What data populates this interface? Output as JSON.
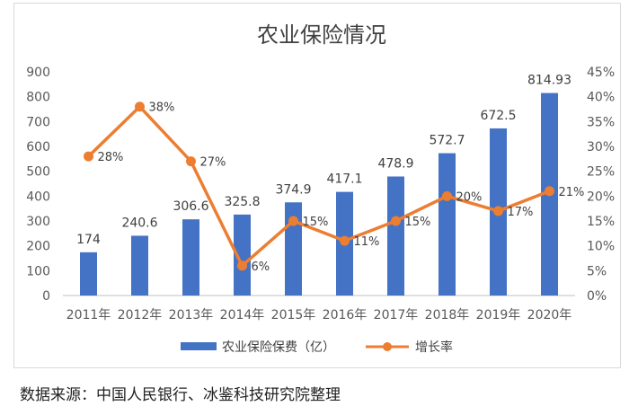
{
  "chart_data": {
    "type": "bar",
    "title": "农业保险情况",
    "categories": [
      "2011年",
      "2012年",
      "2013年",
      "2014年",
      "2015年",
      "2016年",
      "2017年",
      "2018年",
      "2019年",
      "2020年"
    ],
    "series": [
      {
        "name": "农业保险保费（亿）",
        "type": "bar",
        "axis": "left",
        "color": "#4472c4",
        "values": [
          174,
          240.6,
          306.6,
          325.8,
          374.9,
          417.1,
          478.9,
          572.7,
          672.5,
          814.93
        ],
        "labels": [
          "174",
          "240.6",
          "306.6",
          "325.8",
          "374.9",
          "417.1",
          "478.9",
          "572.7",
          "672.5",
          "814.93"
        ]
      },
      {
        "name": "增长率",
        "type": "line",
        "axis": "right",
        "color": "#ed7d31",
        "values": [
          28,
          38,
          27,
          6,
          15,
          11,
          15,
          20,
          17,
          21
        ],
        "labels": [
          "28%",
          "38%",
          "27%",
          "6%",
          "15%",
          "11%",
          "15%",
          "20%",
          "17%",
          "21%"
        ]
      }
    ],
    "y_left": {
      "range": [
        0,
        900
      ],
      "ticks": [
        "0",
        "100",
        "200",
        "300",
        "400",
        "500",
        "600",
        "700",
        "800",
        "900"
      ]
    },
    "y_right": {
      "range": [
        0,
        45
      ],
      "ticks": [
        "0%",
        "5%",
        "10%",
        "15%",
        "20%",
        "25%",
        "30%",
        "35%",
        "40%",
        "45%"
      ]
    },
    "grid": false,
    "legend_position": "bottom"
  },
  "source": "数据来源：中国人民银行、冰鉴科技研究院整理"
}
